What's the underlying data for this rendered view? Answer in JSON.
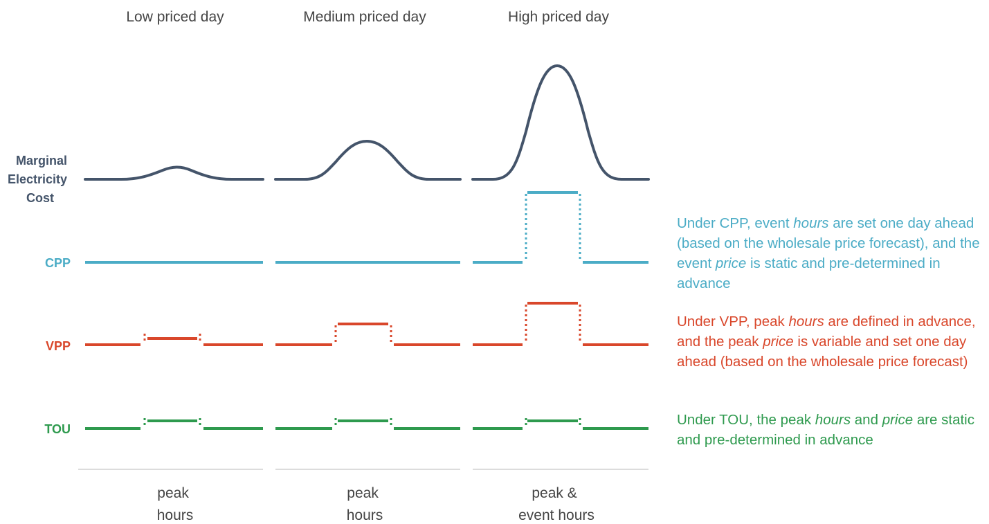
{
  "columns": [
    {
      "title": "Low priced day",
      "bottom": [
        "peak",
        "hours"
      ]
    },
    {
      "title": "Medium priced day",
      "bottom": [
        "peak",
        "hours"
      ]
    },
    {
      "title": "High priced day",
      "bottom": [
        "peak &",
        "event hours"
      ]
    }
  ],
  "rows": [
    {
      "id": "mec",
      "label": [
        "Marginal",
        "Electricity",
        "Cost"
      ],
      "color": "#44546A"
    },
    {
      "id": "cpp",
      "label": [
        "CPP"
      ],
      "color": "#4BACC6"
    },
    {
      "id": "vpp",
      "label": [
        "VPP"
      ],
      "color": "#D9472B"
    },
    {
      "id": "tou",
      "label": [
        "TOU"
      ],
      "color": "#2E9A4E"
    }
  ],
  "notes": {
    "cpp": {
      "color": "#4BACC6",
      "parts": [
        {
          "t": "Under CPP, event ",
          "i": false
        },
        {
          "t": "hours",
          "i": true
        },
        {
          "t": " are set one day ahead (based on the wholesale price forecast), and the event ",
          "i": false
        },
        {
          "t": "price",
          "i": true
        },
        {
          "t": " is static and pre-determined in advance",
          "i": false
        }
      ]
    },
    "vpp": {
      "color": "#D9472B",
      "parts": [
        {
          "t": "Under VPP, peak ",
          "i": false
        },
        {
          "t": "hours",
          "i": true
        },
        {
          "t": " are defined in advance, and the peak ",
          "i": false
        },
        {
          "t": "price",
          "i": true
        },
        {
          "t": " is variable and set one day ahead (based on the wholesale price forecast)",
          "i": false
        }
      ]
    },
    "tou": {
      "color": "#2E9A4E",
      "parts": [
        {
          "t": "Under TOU, the peak ",
          "i": false
        },
        {
          "t": "hours",
          "i": true
        },
        {
          "t": " and ",
          "i": false
        },
        {
          "t": "price",
          "i": true
        },
        {
          "t": " are static and pre-determined in advance",
          "i": false
        }
      ]
    }
  }
}
